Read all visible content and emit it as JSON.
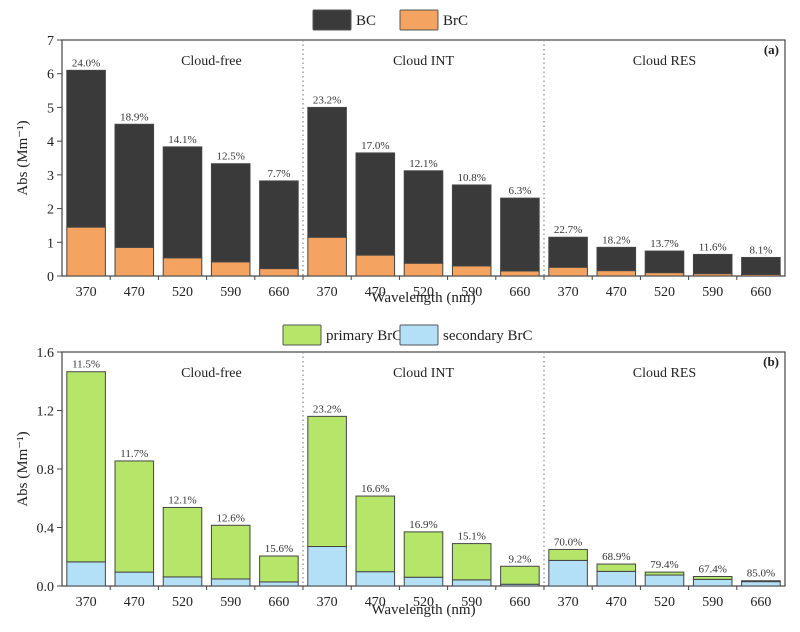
{
  "chart_data": [
    {
      "type": "bar",
      "stacked": true,
      "panel_label": "(a)",
      "xlabel": "Wavelength (nm)",
      "ylabel": "Abs (Mm⁻¹)",
      "ylim": [
        0,
        7
      ],
      "yticks": [
        "0",
        "1",
        "2",
        "3",
        "4",
        "5",
        "6",
        "7"
      ],
      "ytick_values": [
        0,
        1,
        2,
        3,
        4,
        5,
        6,
        7
      ],
      "groups": [
        "Cloud-free",
        "Cloud INT",
        "Cloud RES"
      ],
      "categories": [
        "370",
        "470",
        "520",
        "590",
        "660"
      ],
      "legend": [
        {
          "name": "BC",
          "color": "#3a3a3a"
        },
        {
          "name": "BrC",
          "color": "#f4a460"
        }
      ],
      "series": [
        {
          "name": "BrC",
          "color": "#f4a460",
          "values": [
            [
              1.45,
              0.85,
              0.54,
              0.42,
              0.22
            ],
            [
              1.15,
              0.62,
              0.38,
              0.3,
              0.15
            ],
            [
              0.26,
              0.16,
              0.1,
              0.07,
              0.045
            ]
          ]
        },
        {
          "name": "BC",
          "color": "#3a3a3a",
          "values": [
            [
              4.65,
              3.65,
              3.29,
              2.91,
              2.6
            ],
            [
              3.85,
              3.03,
              2.74,
              2.4,
              2.16
            ],
            [
              0.89,
              0.69,
              0.64,
              0.57,
              0.505
            ]
          ]
        }
      ],
      "totals": [
        [
          6.1,
          4.5,
          3.83,
          3.33,
          2.82
        ],
        [
          5.0,
          3.65,
          3.12,
          2.7,
          2.31
        ],
        [
          1.15,
          0.85,
          0.74,
          0.64,
          0.55
        ]
      ],
      "annotations": [
        [
          "24.0%",
          "18.9%",
          "14.1%",
          "12.5%",
          "7.7%"
        ],
        [
          "23.2%",
          "17.0%",
          "12.1%",
          "10.8%",
          "6.3%"
        ],
        [
          "22.7%",
          "18.2%",
          "13.7%",
          "11.6%",
          "8.1%"
        ]
      ]
    },
    {
      "type": "bar",
      "stacked": true,
      "panel_label": "(b)",
      "xlabel": "Wavelength (nm)",
      "ylabel": "Abs (Mm⁻¹)",
      "ylim": [
        0,
        1.6
      ],
      "yticks": [
        "0.0",
        "0.4",
        "0.8",
        "1.2",
        "1.6"
      ],
      "ytick_values": [
        0,
        0.4,
        0.8,
        1.2,
        1.6
      ],
      "groups": [
        "Cloud-free",
        "Cloud INT",
        "Cloud RES"
      ],
      "categories": [
        "370",
        "470",
        "520",
        "590",
        "660"
      ],
      "legend": [
        {
          "name": "primary BrC",
          "color": "#b5e66a"
        },
        {
          "name": "secondary BrC",
          "color": "#b3e0f7"
        }
      ],
      "series": [
        {
          "name": "secondary BrC",
          "color": "#b3e0f7",
          "values": [
            [
              0.165,
              0.095,
              0.062,
              0.048,
              0.028
            ],
            [
              0.27,
              0.098,
              0.06,
              0.042,
              0.012
            ],
            [
              0.175,
              0.1,
              0.075,
              0.045,
              0.03
            ]
          ]
        },
        {
          "name": "primary BrC",
          "color": "#b5e66a",
          "values": [
            [
              1.3,
              0.76,
              0.475,
              0.367,
              0.177
            ],
            [
              0.89,
              0.517,
              0.31,
              0.248,
              0.123
            ],
            [
              0.075,
              0.05,
              0.02,
              0.02,
              0.006
            ]
          ]
        }
      ],
      "totals": [
        [
          1.465,
          0.855,
          0.537,
          0.415,
          0.205
        ],
        [
          1.16,
          0.615,
          0.37,
          0.29,
          0.135
        ],
        [
          0.25,
          0.15,
          0.095,
          0.065,
          0.036
        ]
      ],
      "annotations": [
        [
          "11.5%",
          "11.7%",
          "12.1%",
          "12.6%",
          "15.6%"
        ],
        [
          "23.2%",
          "16.6%",
          "16.9%",
          "15.1%",
          "9.2%"
        ],
        [
          "70.0%",
          "68.9%",
          "79.4%",
          "67.4%",
          "85.0%"
        ]
      ]
    }
  ]
}
